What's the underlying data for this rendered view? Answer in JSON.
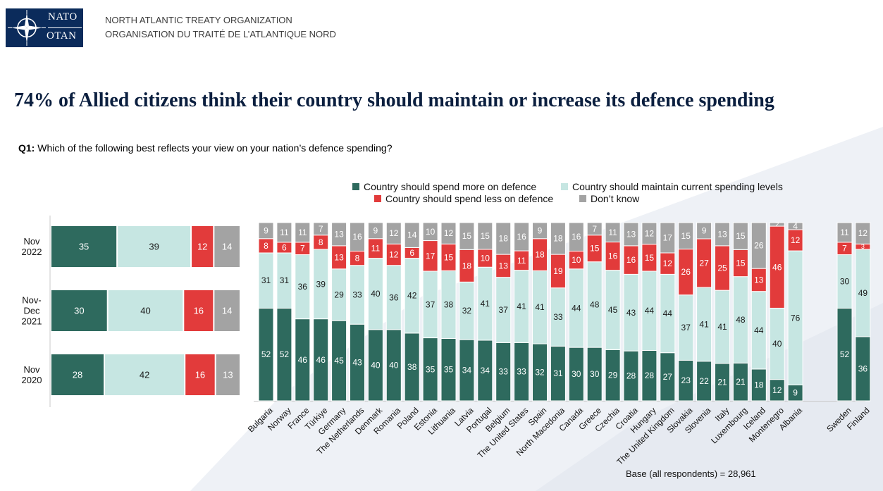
{
  "header": {
    "logo_top": "NATO",
    "logo_bottom": "OTAN",
    "org_en": "NORTH ATLANTIC TREATY ORGANIZATION",
    "org_fr": "ORGANISATION DU TRAITÉ DE L’ATLANTIQUE NORD"
  },
  "title": "74% of Allied citizens think their country should maintain or increase its defence spending",
  "question": {
    "label": "Q1:",
    "text": "Which of the following best reflects your view on your nation’s defence spending?"
  },
  "base_note": "Base (all respondents) = 28,961",
  "colors": {
    "more": "#2e6a5e",
    "maintain": "#c6e6e2",
    "less": "#e23b3b",
    "dont_know": "#a3a3a3",
    "navy": "#0b2b5b"
  },
  "chart_data": [
    {
      "type": "bar",
      "orientation": "horizontal",
      "stacked": true,
      "categories": [
        "Nov\n2022",
        "Nov-\nDec\n2021",
        "Nov\n2020"
      ],
      "series": [
        {
          "name": "Country should spend more on defence",
          "values": [
            35,
            30,
            28
          ]
        },
        {
          "name": "Country should maintain current spending levels",
          "values": [
            39,
            40,
            42
          ]
        },
        {
          "name": "Country should spend less on defence",
          "values": [
            12,
            16,
            16
          ]
        },
        {
          "name": "Don’t know",
          "values": [
            14,
            14,
            13
          ]
        }
      ]
    },
    {
      "type": "bar",
      "orientation": "vertical",
      "stacked": true,
      "legend": [
        "Country should spend more on defence",
        "Country should maintain current spending levels",
        "Country should spend less on defence",
        "Don’t know"
      ],
      "categories": [
        "Bulgaria",
        "Norway",
        "France",
        "Türkiye",
        "Germany",
        "The Netherlands",
        "Denmark",
        "Romania",
        "Poland",
        "Estonia",
        "Lithuania",
        "Latvia",
        "Portugal",
        "Belgium",
        "The United States",
        "Spain",
        "North Macedonia",
        "Canada",
        "Greece",
        "Czechia",
        "Croatia",
        "Hungary",
        "The United Kingdom",
        "Slovakia",
        "Slovenia",
        "Italy",
        "Luxembourg",
        "Iceland",
        "Montenegro",
        "Albania",
        "Sweden",
        "Finland"
      ],
      "series": [
        {
          "name": "Country should spend more on defence",
          "values": [
            52,
            52,
            46,
            46,
            45,
            43,
            40,
            40,
            38,
            35,
            35,
            34,
            34,
            33,
            33,
            32,
            31,
            30,
            30,
            29,
            28,
            28,
            27,
            23,
            22,
            21,
            21,
            18,
            12,
            9,
            52,
            36
          ]
        },
        {
          "name": "Country should maintain current spending levels",
          "values": [
            31,
            31,
            36,
            39,
            29,
            33,
            40,
            36,
            42,
            37,
            38,
            32,
            41,
            37,
            41,
            41,
            33,
            44,
            48,
            45,
            43,
            44,
            44,
            37,
            41,
            41,
            48,
            44,
            40,
            76,
            30,
            49
          ]
        },
        {
          "name": "Country should spend less on defence",
          "values": [
            8,
            6,
            7,
            8,
            13,
            8,
            11,
            12,
            6,
            17,
            15,
            18,
            10,
            13,
            11,
            18,
            19,
            10,
            15,
            16,
            16,
            15,
            12,
            26,
            27,
            25,
            15,
            13,
            46,
            12,
            7,
            3
          ]
        },
        {
          "name": "Don’t know",
          "values": [
            9,
            11,
            11,
            7,
            13,
            16,
            9,
            12,
            14,
            10,
            12,
            15,
            15,
            18,
            16,
            9,
            18,
            16,
            7,
            11,
            13,
            12,
            17,
            15,
            9,
            13,
            15,
            26,
            2,
            4,
            11,
            12
          ]
        }
      ]
    }
  ]
}
